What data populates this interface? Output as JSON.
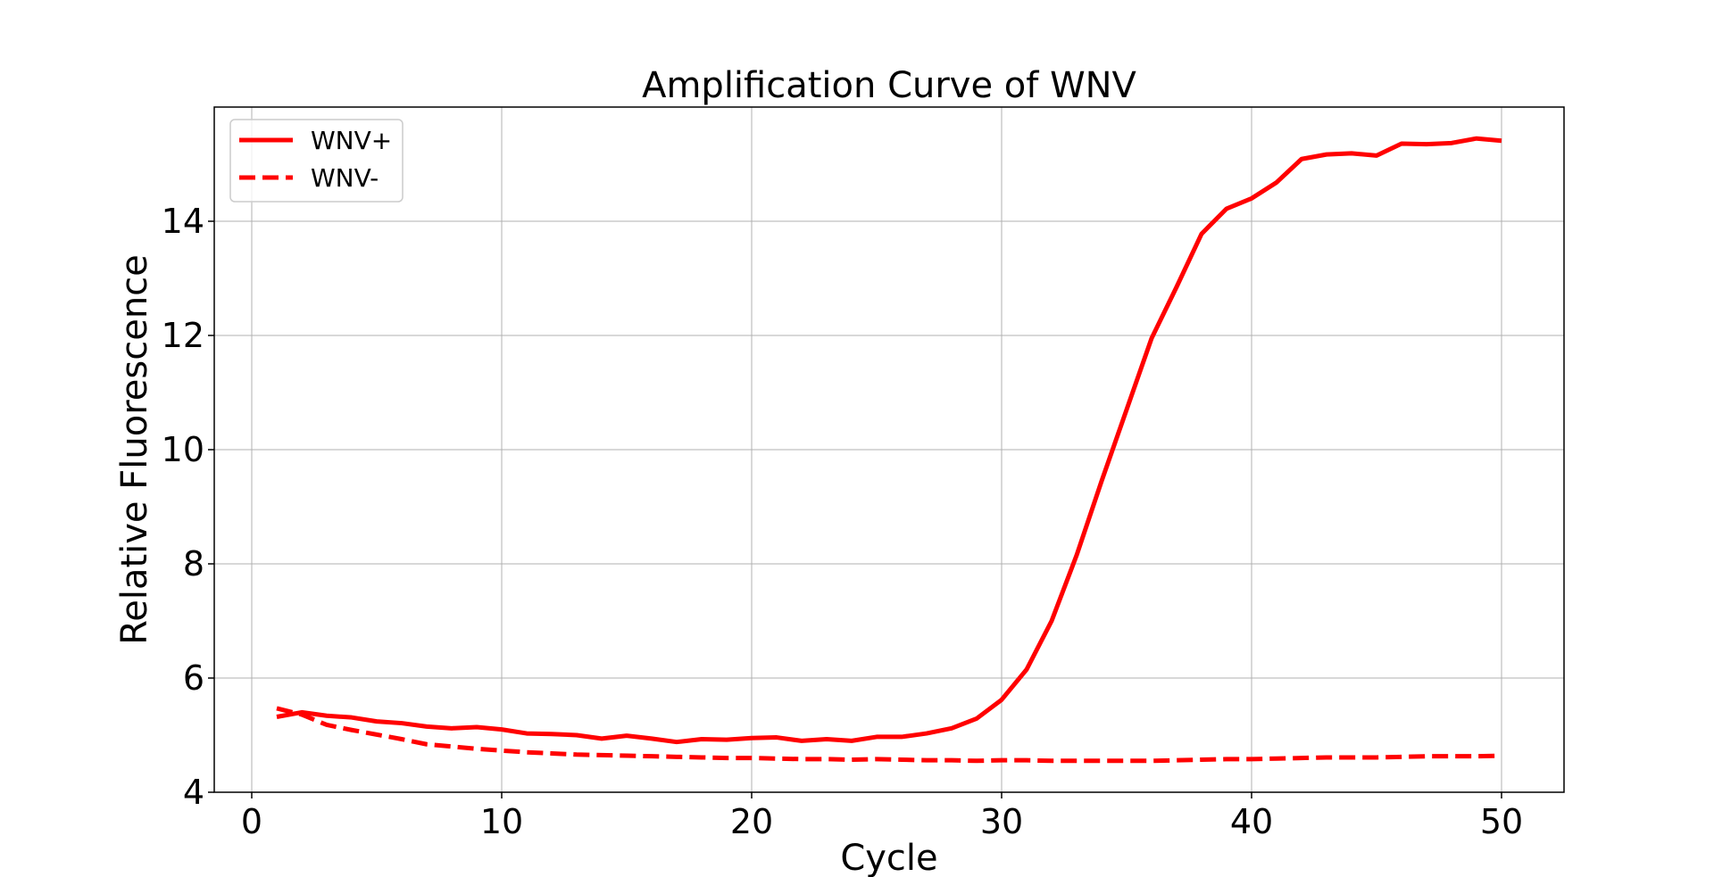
{
  "chart_data": {
    "type": "line",
    "title": "Amplification Curve of WNV",
    "xlabel": "Cycle",
    "ylabel": "Relative Fluorescence",
    "xlim": [
      -1.5,
      52.5
    ],
    "ylim": [
      4.0,
      16.0
    ],
    "xticks": [
      0,
      10,
      20,
      30,
      40,
      50
    ],
    "yticks": [
      4,
      6,
      8,
      10,
      12,
      14
    ],
    "grid": true,
    "legend_position": "top-left",
    "series": [
      {
        "name": "WNV+",
        "color": "#ff0000",
        "style": "solid",
        "x": [
          1,
          2,
          3,
          4,
          5,
          6,
          7,
          8,
          9,
          10,
          11,
          12,
          13,
          14,
          15,
          16,
          17,
          18,
          19,
          20,
          21,
          22,
          23,
          24,
          25,
          26,
          27,
          28,
          29,
          30,
          31,
          32,
          33,
          34,
          35,
          36,
          37,
          38,
          39,
          40,
          41,
          42,
          43,
          44,
          45,
          46,
          47,
          48,
          49,
          50
        ],
        "y": [
          5.32,
          5.4,
          5.34,
          5.31,
          5.24,
          5.21,
          5.15,
          5.12,
          5.14,
          5.1,
          5.03,
          5.02,
          5.0,
          4.94,
          4.99,
          4.94,
          4.88,
          4.93,
          4.92,
          4.95,
          4.96,
          4.9,
          4.93,
          4.9,
          4.97,
          4.97,
          5.03,
          5.12,
          5.29,
          5.62,
          6.15,
          7.0,
          8.15,
          9.45,
          10.7,
          11.95,
          12.85,
          13.78,
          14.22,
          14.4,
          14.68,
          15.09,
          15.17,
          15.19,
          15.15,
          15.36,
          15.35,
          15.37,
          15.45,
          15.41
        ]
      },
      {
        "name": "WNV-",
        "color": "#ff0000",
        "style": "dashed",
        "x": [
          1,
          2,
          3,
          4,
          5,
          6,
          7,
          8,
          9,
          10,
          11,
          12,
          13,
          14,
          15,
          16,
          17,
          18,
          19,
          20,
          21,
          22,
          23,
          24,
          25,
          26,
          27,
          28,
          29,
          30,
          31,
          32,
          33,
          34,
          35,
          36,
          37,
          38,
          39,
          40,
          41,
          42,
          43,
          44,
          45,
          46,
          47,
          48,
          49,
          50
        ],
        "y": [
          5.47,
          5.36,
          5.18,
          5.09,
          5.01,
          4.93,
          4.84,
          4.8,
          4.76,
          4.73,
          4.7,
          4.68,
          4.66,
          4.65,
          4.64,
          4.63,
          4.62,
          4.61,
          4.6,
          4.6,
          4.59,
          4.58,
          4.58,
          4.57,
          4.58,
          4.57,
          4.56,
          4.56,
          4.55,
          4.56,
          4.56,
          4.55,
          4.55,
          4.55,
          4.55,
          4.55,
          4.56,
          4.57,
          4.58,
          4.58,
          4.59,
          4.6,
          4.61,
          4.61,
          4.61,
          4.62,
          4.63,
          4.63,
          4.63,
          4.64
        ]
      }
    ]
  }
}
